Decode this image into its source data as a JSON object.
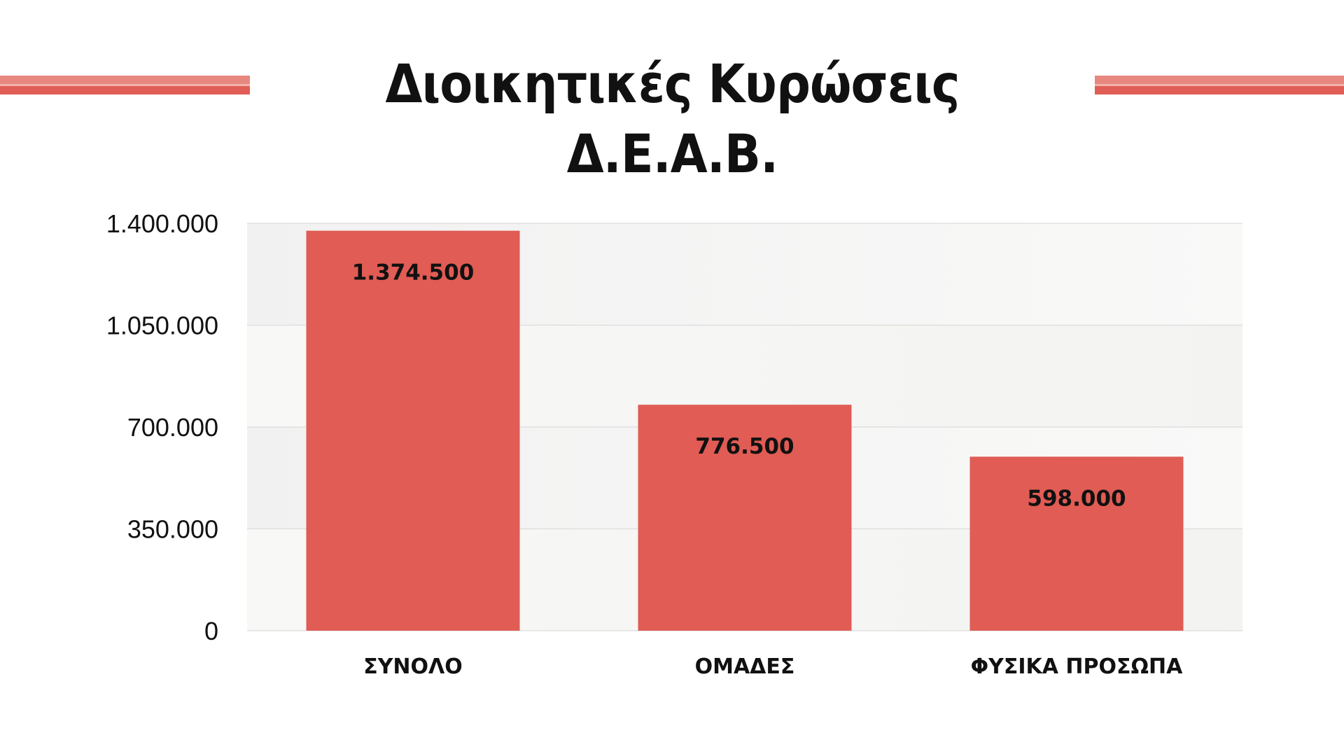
{
  "header": {
    "title": "Διοικητικές Κυρώσεις Δ.Ε.Α.Β."
  },
  "colors": {
    "bar": "#e05c54",
    "accent_line": "#e05e55",
    "plot_band_light": "#f7f7f5",
    "plot_band_dark": "#efefef",
    "text": "#111111"
  },
  "chart_data": {
    "type": "bar",
    "title": "Διοικητικές Κυρώσεις Δ.Ε.Α.Β.",
    "categories": [
      "ΣΥΝΟΛΟ",
      "ΟΜΑΔΕΣ",
      "ΦΥΣΙΚΑ ΠΡΟΣΩΠΑ"
    ],
    "values": [
      1374500,
      776500,
      598000
    ],
    "data_labels": [
      "1.374.500",
      "776.500",
      "598.000"
    ],
    "ylim": [
      0,
      1400000
    ],
    "yticks": [
      0,
      350000,
      700000,
      1050000,
      1400000
    ],
    "ytick_labels": [
      "0",
      "350.000",
      "700.000",
      "1.050.000",
      "1.400.000"
    ],
    "xlabel": "",
    "ylabel": "",
    "grid": true,
    "legend": "none"
  }
}
